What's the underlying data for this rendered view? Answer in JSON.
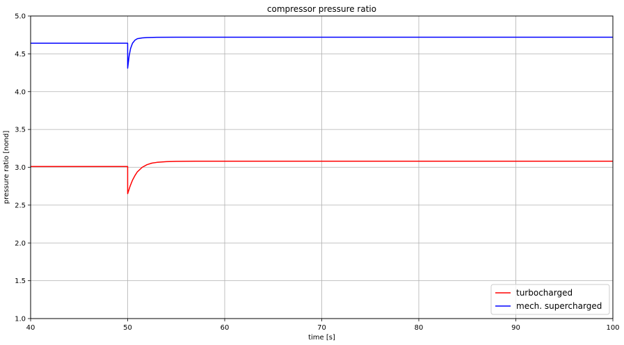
{
  "chart_data": {
    "type": "line",
    "title": "compressor pressure ratio",
    "xlabel": "time [s]",
    "ylabel": "pressure ratio [nond]",
    "xlim": [
      40,
      100
    ],
    "ylim": [
      1.0,
      5.0
    ],
    "xticks": [
      40,
      50,
      60,
      70,
      80,
      90,
      100
    ],
    "yticks": [
      1.0,
      1.5,
      2.0,
      2.5,
      3.0,
      3.5,
      4.0,
      4.5,
      5.0
    ],
    "xtick_labels": [
      "40",
      "50",
      "60",
      "70",
      "80",
      "90",
      "100"
    ],
    "ytick_labels": [
      "1.0",
      "1.5",
      "2.0",
      "2.5",
      "3.0",
      "3.5",
      "4.0",
      "4.5",
      "5.0"
    ],
    "grid": true,
    "legend_position": "lower-right",
    "series": [
      {
        "name": "turbocharged",
        "color": "#ff0000",
        "x": [
          40,
          50,
          50,
          50.25,
          50.5,
          50.75,
          51,
          51.5,
          52,
          52.5,
          53,
          54,
          55,
          56,
          57,
          58,
          60,
          65,
          70,
          80,
          90,
          100
        ],
        "y": [
          3.01,
          3.01,
          2.65,
          2.75,
          2.83,
          2.89,
          2.94,
          3.0,
          3.035,
          3.055,
          3.065,
          3.075,
          3.078,
          3.079,
          3.08,
          3.08,
          3.08,
          3.08,
          3.08,
          3.08,
          3.08,
          3.08
        ]
      },
      {
        "name": "mech. supercharged",
        "color": "#0000ff",
        "x": [
          40,
          50,
          50,
          50.15,
          50.3,
          50.5,
          50.75,
          51,
          51.5,
          52,
          53,
          55,
          60,
          70,
          80,
          90,
          100
        ],
        "y": [
          4.64,
          4.64,
          4.31,
          4.47,
          4.57,
          4.64,
          4.68,
          4.7,
          4.71,
          4.715,
          4.718,
          4.72,
          4.72,
          4.72,
          4.72,
          4.72,
          4.72
        ]
      }
    ]
  }
}
